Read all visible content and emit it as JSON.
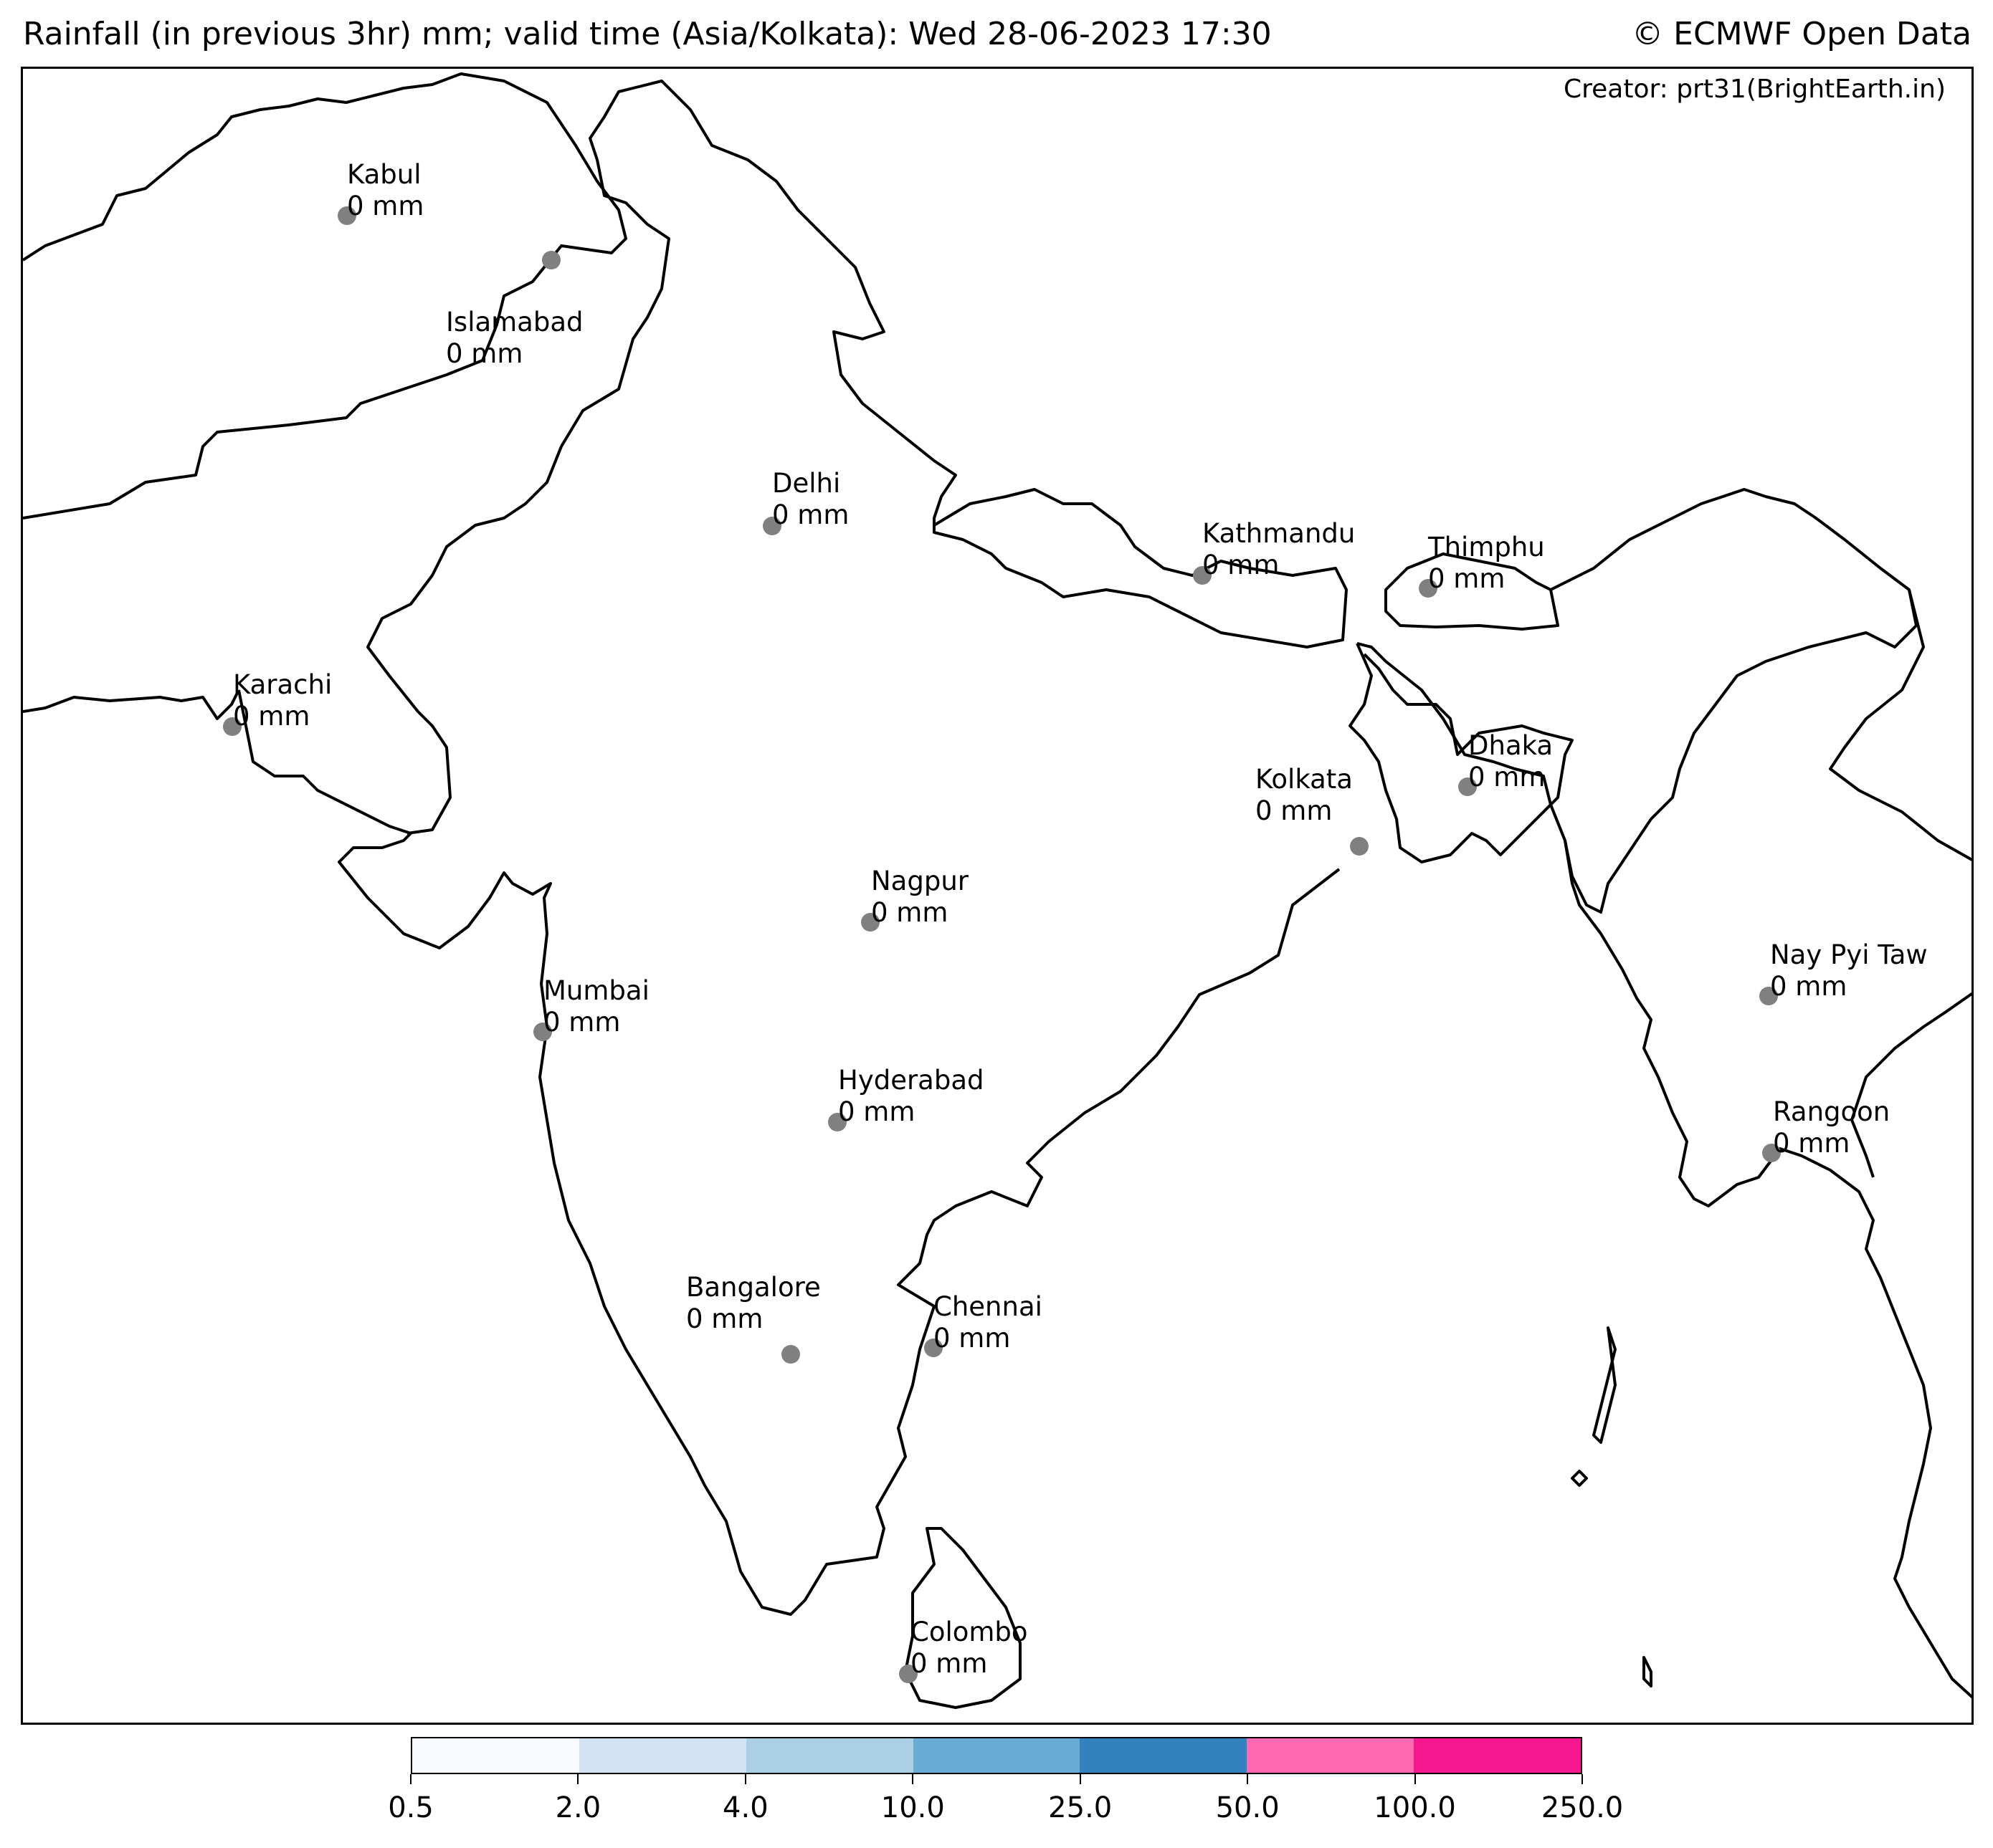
{
  "header": {
    "title": "Rainfall (in previous 3hr) mm; valid time (Asia/Kolkata): Wed 28-06-2023 17:30",
    "credit": "© ECMWF Open Data",
    "creator": "Creator: prt31(BrightEarth.in)"
  },
  "cities": [
    {
      "name": "Kabul",
      "value": "0 mm"
    },
    {
      "name": "Islamabad",
      "value": "0 mm"
    },
    {
      "name": "Delhi",
      "value": "0 mm"
    },
    {
      "name": "Kathmandu",
      "value": "0 mm"
    },
    {
      "name": "Thimphu",
      "value": "0 mm"
    },
    {
      "name": "Karachi",
      "value": "0 mm"
    },
    {
      "name": "Dhaka",
      "value": "0 mm"
    },
    {
      "name": "Kolkata",
      "value": "0 mm"
    },
    {
      "name": "Nagpur",
      "value": "0 mm"
    },
    {
      "name": "Nay Pyi Taw",
      "value": "0 mm"
    },
    {
      "name": "Mumbai",
      "value": "0 mm"
    },
    {
      "name": "Hyderabad",
      "value": "0 mm"
    },
    {
      "name": "Rangoon",
      "value": "0 mm"
    },
    {
      "name": "Bangalore",
      "value": "0 mm"
    },
    {
      "name": "Chennai",
      "value": "0 mm"
    },
    {
      "name": "Colombo",
      "value": "0 mm"
    }
  ],
  "colorbar": {
    "ticks": [
      "0.5",
      "2.0",
      "4.0",
      "10.0",
      "25.0",
      "50.0",
      "100.0",
      "250.0"
    ],
    "colors": [
      "#f7fbff",
      "#d2e3f3",
      "#abd0e6",
      "#68acd5",
      "#3282be",
      "#ff69b4",
      "#f7178f"
    ]
  }
}
